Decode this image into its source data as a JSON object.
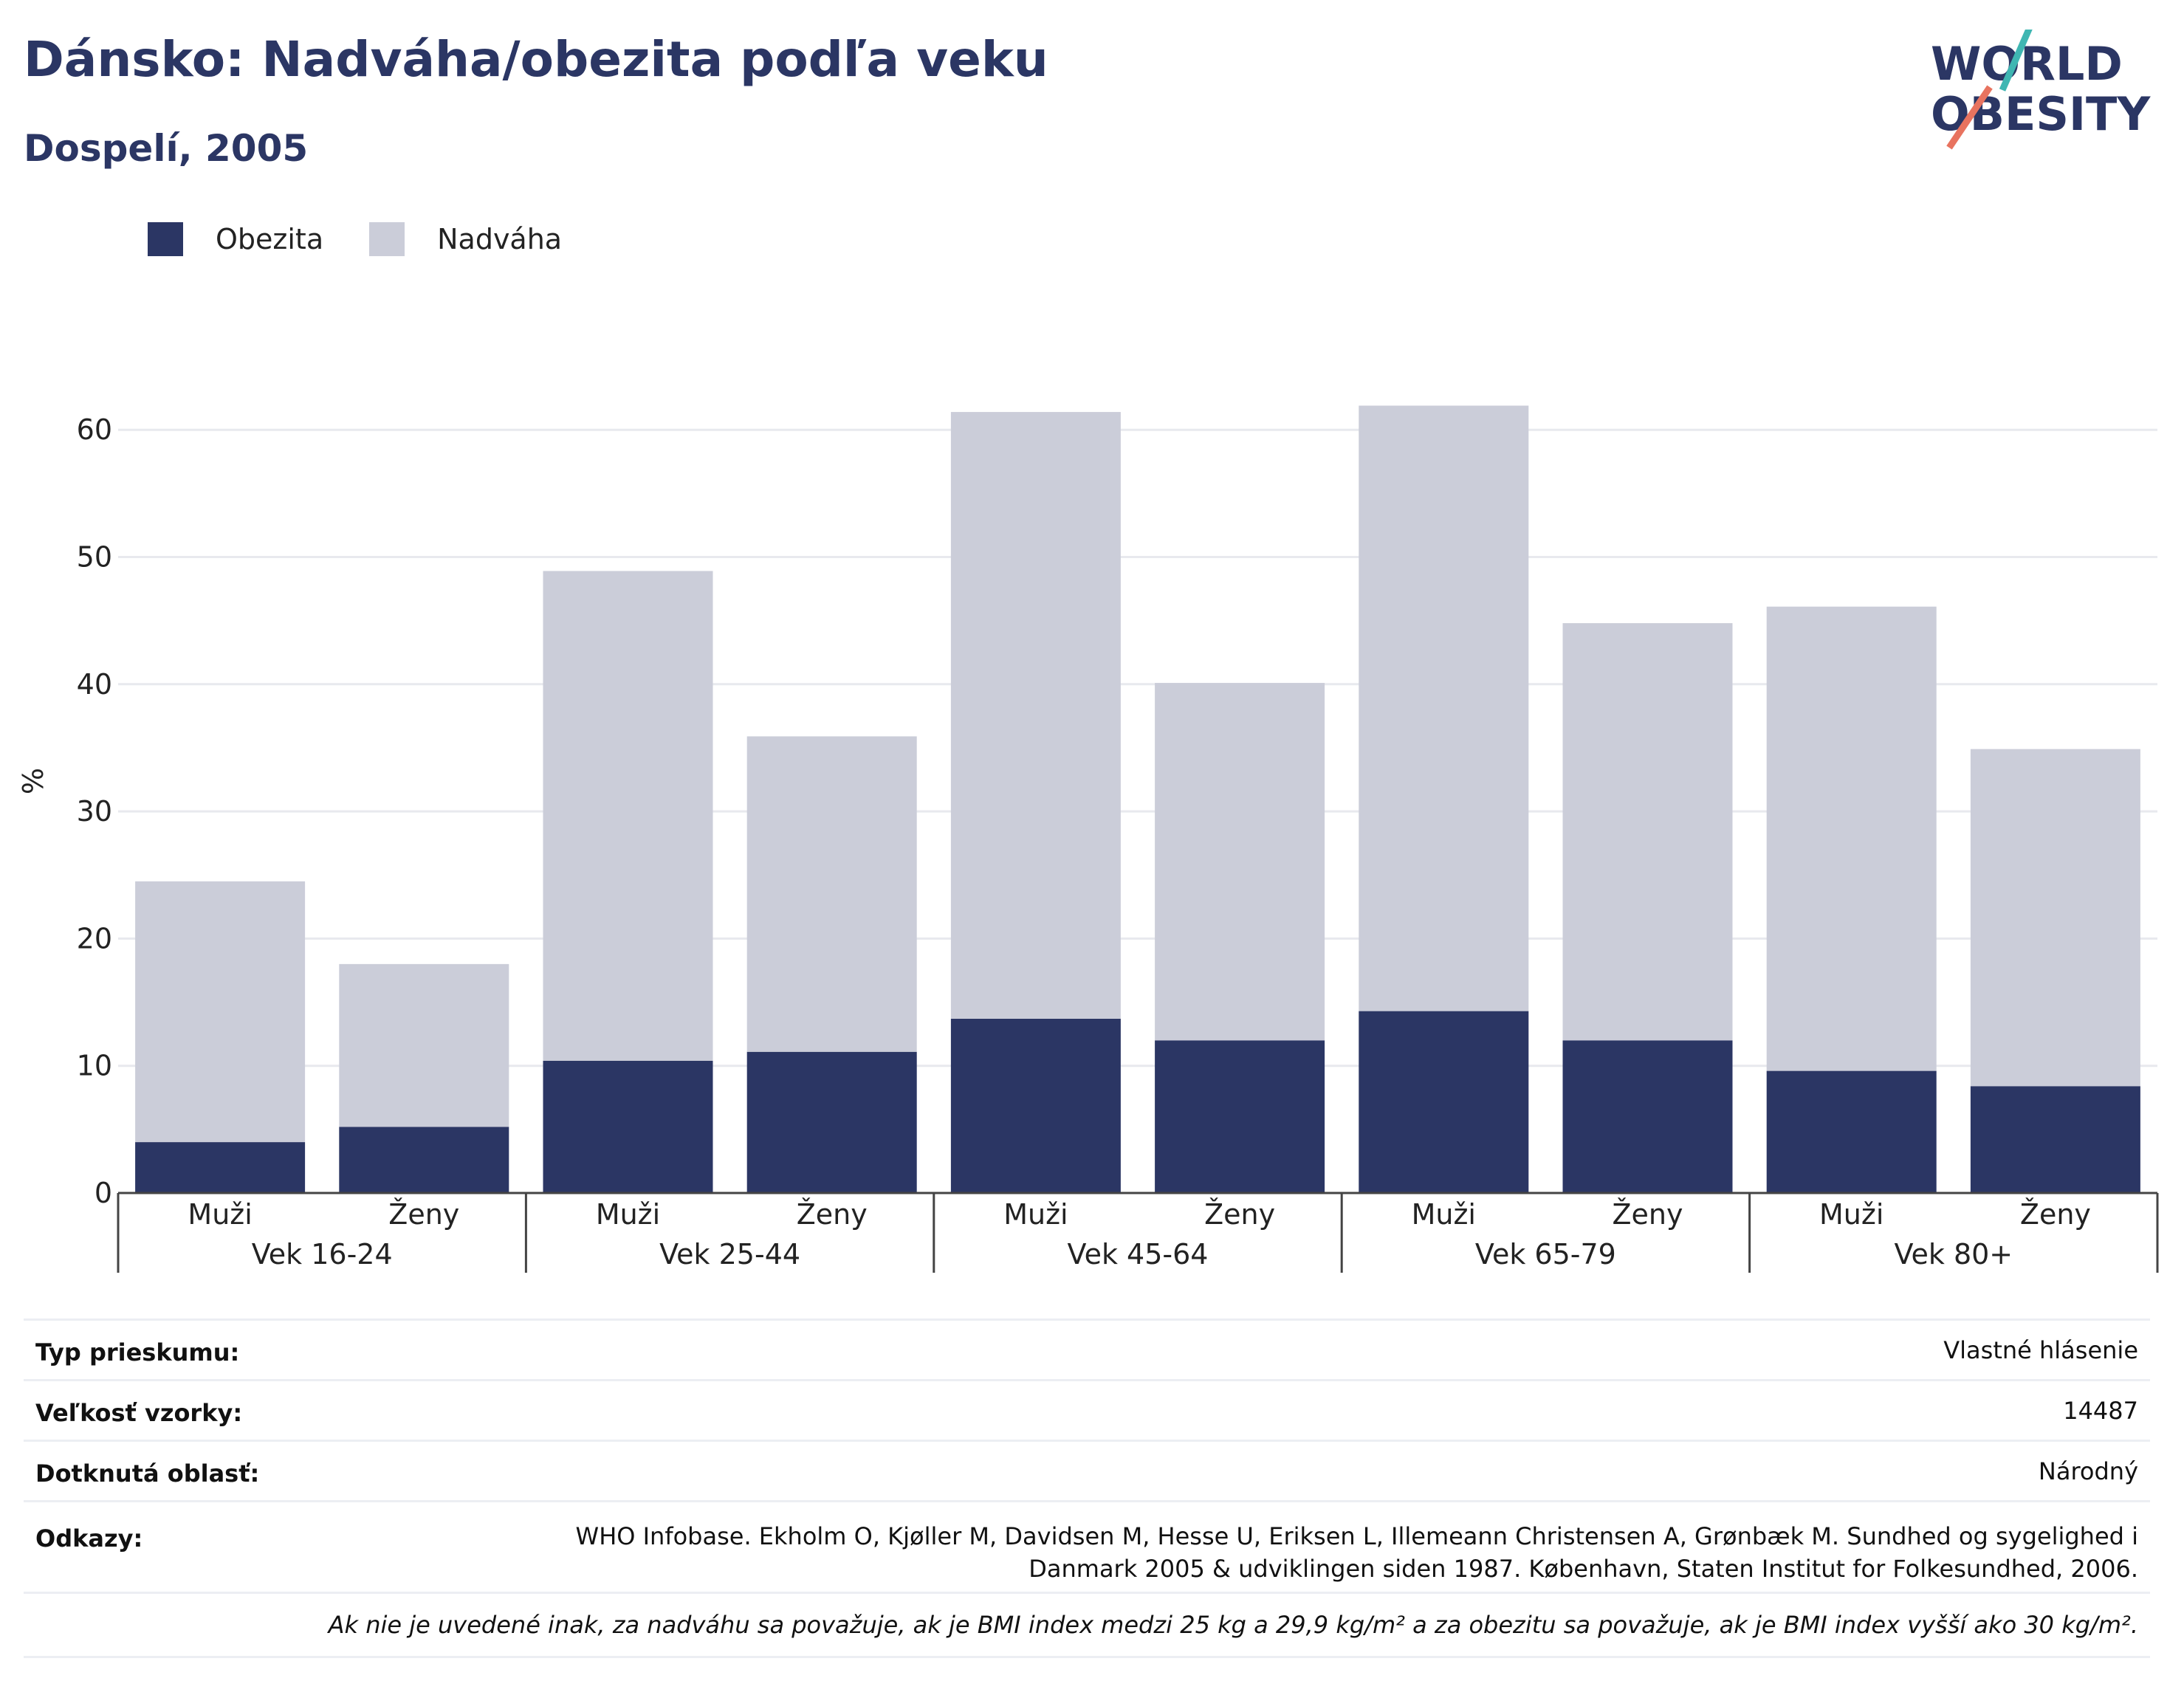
{
  "header": {
    "title": "Dánsko: Nadváha/obezita podľa veku",
    "subtitle": "Dospelí, 2005"
  },
  "logo": {
    "line1": "WORLD",
    "line2": "OBESITY",
    "icon": "world-obesity-logo"
  },
  "colors": {
    "obesity": "#2b3664",
    "overweight": "#cbcdd9",
    "grid": "#e8e9ee",
    "accent_teal": "#3fb6b2",
    "accent_coral": "#e8735f"
  },
  "legend": {
    "obesity_label": "Obezita",
    "overweight_label": "Nadváha"
  },
  "chart_data": {
    "type": "bar",
    "stacked": true,
    "ylabel": "%",
    "xlabel": "",
    "ylim": [
      0,
      65
    ],
    "yticks": [
      0,
      10,
      20,
      30,
      40,
      50,
      60
    ],
    "grid": true,
    "legend_position": "top-left",
    "groups": [
      "Vek 16-24",
      "Vek 25-44",
      "Vek 45-64",
      "Vek 65-79",
      "Vek 80+"
    ],
    "categories": [
      "Muži",
      "Ženy",
      "Muži",
      "Ženy",
      "Muži",
      "Ženy",
      "Muži",
      "Ženy",
      "Muži",
      "Ženy"
    ],
    "series": [
      {
        "name": "Obezita",
        "values": [
          4.0,
          5.2,
          10.4,
          11.1,
          13.7,
          12.0,
          14.3,
          12.0,
          9.6,
          8.4
        ]
      },
      {
        "name": "Nadváha",
        "values": [
          20.5,
          12.8,
          38.5,
          24.8,
          47.7,
          28.1,
          47.6,
          32.8,
          36.5,
          26.5
        ]
      }
    ]
  },
  "info": {
    "survey_type_label": "Typ prieskumu:",
    "survey_type_value": "Vlastné hlásenie",
    "sample_size_label": "Veľkosť vzorky:",
    "sample_size_value": "14487",
    "area_label": "Dotknutá oblasť:",
    "area_value": "Národný",
    "references_label": "Odkazy:",
    "references_line1": "WHO Infobase. Ekholm O, Kjøller M, Davidsen M, Hesse U, Eriksen L, Illemeann Christensen A, Grønbæk M. Sundhed og sygelighed i",
    "references_line2": "Danmark 2005 & udviklingen siden 1987. København, Staten Institut for Folkesundhed, 2006.",
    "footnote": "Ak nie je uvedené inak, za nadváhu sa považuje, ak je BMI index medzi 25 kg a 29,9 kg/m² a za obezitu sa považuje, ak je BMI index vyšší ako 30 kg/m²."
  }
}
